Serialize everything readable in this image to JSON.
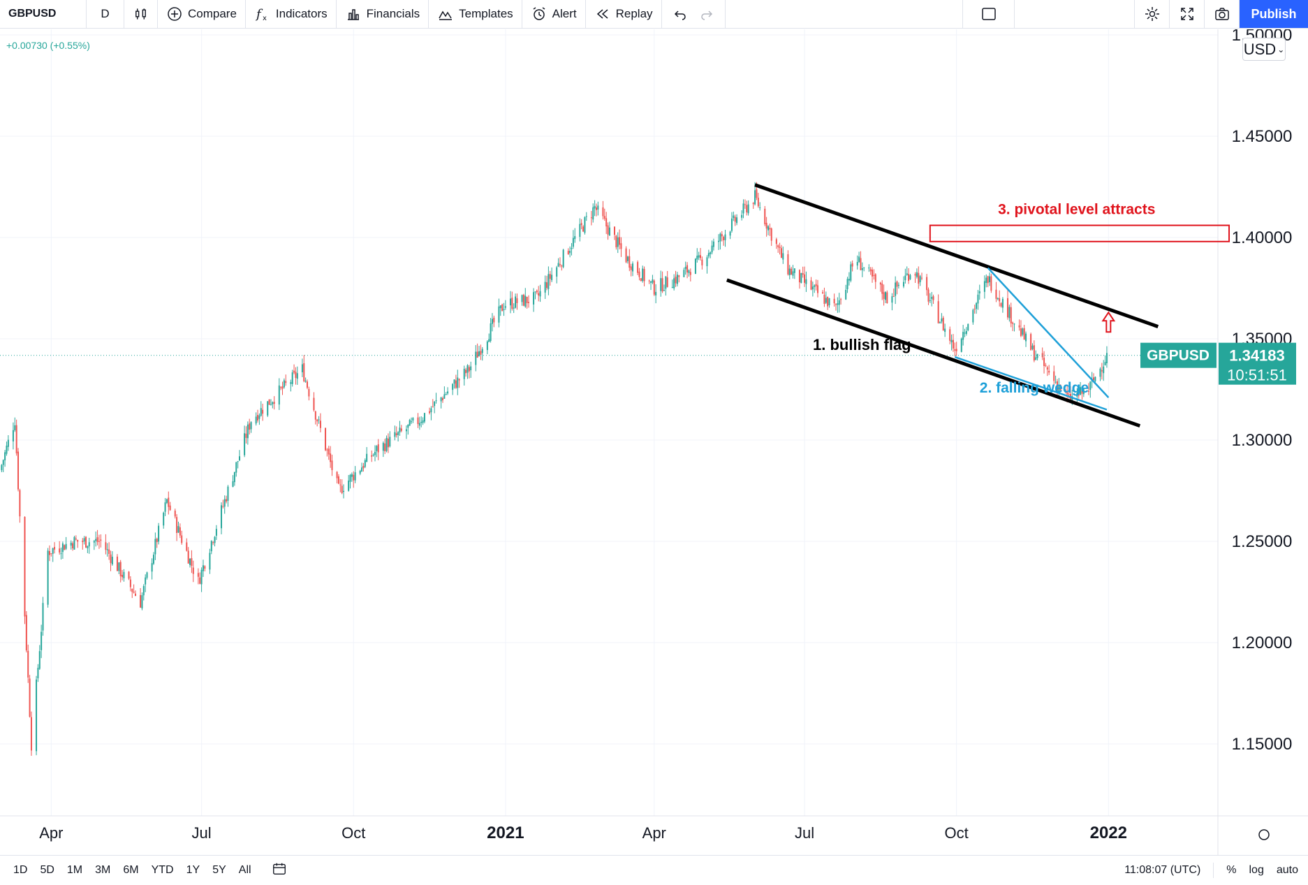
{
  "toolbar": {
    "symbol": "GBPUSD",
    "interval": "D",
    "compare": "Compare",
    "indicators": "Indicators",
    "financials": "Financials",
    "templates": "Templates",
    "alert": "Alert",
    "replay": "Replay",
    "publish": "Publish"
  },
  "price_change": "+0.00730 (+0.55%)",
  "currency": "USD",
  "price_label": {
    "symbol": "GBPUSD",
    "price": "1.34183",
    "countdown": "10:51:51"
  },
  "bottom": {
    "ranges": [
      "1D",
      "5D",
      "1M",
      "3M",
      "6M",
      "YTD",
      "1Y",
      "5Y",
      "All"
    ],
    "time": "11:08:07 (UTC)",
    "pct": "%",
    "log": "log",
    "auto": "auto"
  },
  "colors": {
    "up": "#26a69a",
    "down": "#ef5350",
    "accent": "#2962ff",
    "annotation_red": "#e0131c",
    "annotation_blue": "#1ea0d8"
  },
  "chart_data": {
    "type": "candlestick",
    "symbol": "GBPUSD",
    "interval": "daily",
    "x_ticks": [
      "Apr",
      "Jul",
      "Oct",
      "2021",
      "Apr",
      "Jul",
      "Oct",
      "2022"
    ],
    "y_ticks": [
      "1.15000",
      "1.20000",
      "1.25000",
      "1.30000",
      "1.35000",
      "1.40000",
      "1.45000",
      "1.50000"
    ],
    "ylim": [
      1.115,
      1.505
    ],
    "date_range": [
      "2020-03-01",
      "2022-03-15"
    ],
    "close_path": [
      [
        "2020-03-01",
        1.285
      ],
      [
        "2020-03-10",
        1.31
      ],
      [
        "2020-03-20",
        1.15
      ],
      [
        "2020-03-30",
        1.245
      ],
      [
        "2020-04-15",
        1.25
      ],
      [
        "2020-05-01",
        1.25
      ],
      [
        "2020-05-25",
        1.22
      ],
      [
        "2020-06-10",
        1.27
      ],
      [
        "2020-06-29",
        1.23
      ],
      [
        "2020-07-31",
        1.31
      ],
      [
        "2020-08-31",
        1.335
      ],
      [
        "2020-09-22",
        1.275
      ],
      [
        "2020-10-15",
        1.295
      ],
      [
        "2020-11-10",
        1.31
      ],
      [
        "2020-12-10",
        1.335
      ],
      [
        "2020-12-31",
        1.367
      ],
      [
        "2021-01-20",
        1.37
      ],
      [
        "2021-02-24",
        1.415
      ],
      [
        "2021-03-15",
        1.39
      ],
      [
        "2021-04-01",
        1.375
      ],
      [
        "2021-04-15",
        1.38
      ],
      [
        "2021-05-01",
        1.39
      ],
      [
        "2021-06-01",
        1.42
      ],
      [
        "2021-06-20",
        1.385
      ],
      [
        "2021-07-20",
        1.365
      ],
      [
        "2021-08-01",
        1.39
      ],
      [
        "2021-08-20",
        1.37
      ],
      [
        "2021-09-05",
        1.385
      ],
      [
        "2021-09-30",
        1.345
      ],
      [
        "2021-10-20",
        1.38
      ],
      [
        "2021-11-15",
        1.345
      ],
      [
        "2021-12-08",
        1.32
      ],
      [
        "2021-12-20",
        1.325
      ],
      [
        "2021-12-31",
        1.3418
      ]
    ],
    "last_price": 1.34183,
    "annotations": [
      {
        "text": "1. bullish flag",
        "color": "#000000"
      },
      {
        "text": "2. falling wedge",
        "color": "#1ea0d8"
      },
      {
        "text": "3. pivotal level attracts",
        "color": "#e0131c"
      }
    ],
    "trendlines": [
      {
        "name": "upper-channel",
        "color": "#000000",
        "from": [
          "2021-06-01",
          1.426
        ],
        "to": [
          "2022-01-31",
          1.356
        ]
      },
      {
        "name": "lower-channel",
        "color": "#000000",
        "from": [
          "2021-05-15",
          1.379
        ],
        "to": [
          "2022-01-20",
          1.307
        ]
      },
      {
        "name": "wedge-upper",
        "color": "#1ea0d8",
        "from": [
          "2021-10-20",
          1.385
        ],
        "to": [
          "2022-01-01",
          1.321
        ]
      },
      {
        "name": "wedge-lower",
        "color": "#1ea0d8",
        "from": [
          "2021-09-30",
          1.341
        ],
        "to": [
          "2021-12-31",
          1.315
        ]
      }
    ],
    "zone": {
      "name": "pivotal-level",
      "color": "#e0131c",
      "from": "2021-09-15",
      "to": "2022-03-15",
      "y_top": 1.406,
      "y_bottom": 1.398
    }
  }
}
